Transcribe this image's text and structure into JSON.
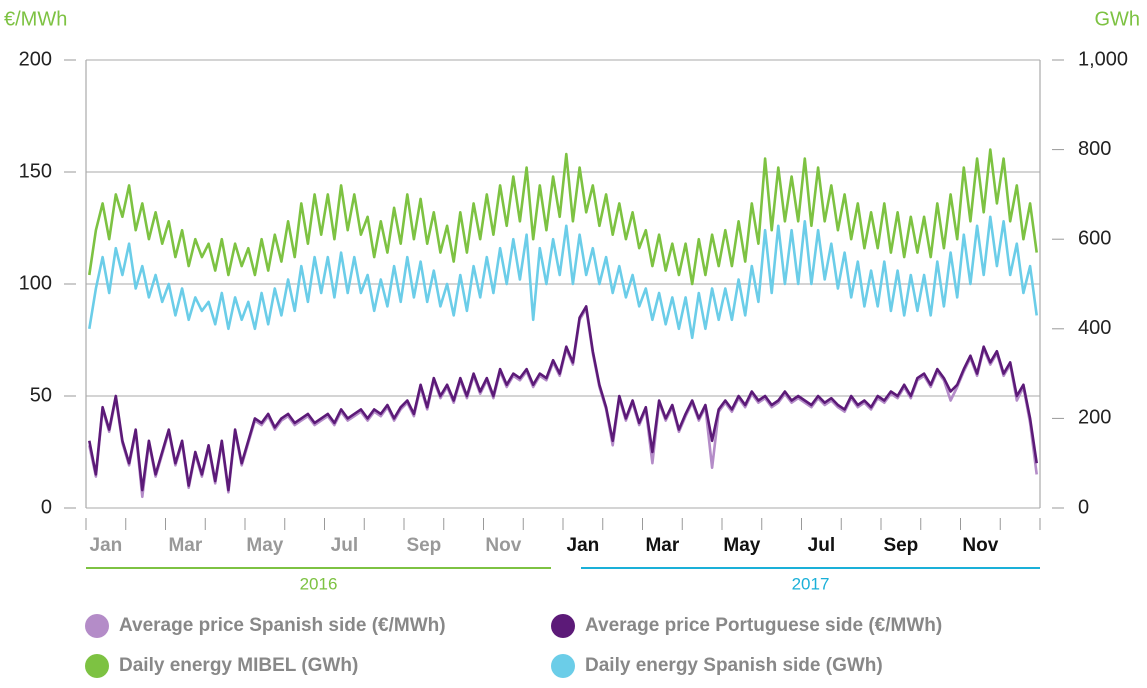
{
  "chart_data": {
    "type": "line",
    "y_label": "€/MWh",
    "y2_label": "GWh",
    "axis_label_color": "#7dc242",
    "ylim": [
      0,
      200
    ],
    "yticks": [
      0,
      50,
      100,
      150,
      200
    ],
    "y2lim": [
      0,
      1000
    ],
    "y2ticks": [
      0,
      200,
      400,
      600,
      800,
      {
        "value": 1000,
        "label": "1,000"
      }
    ],
    "grid": true,
    "legend": "bottom",
    "x_groups": [
      {
        "label": "2016",
        "color": "#7dc242"
      },
      {
        "label": "2017",
        "color": "#1ab0d8"
      }
    ],
    "categories": [
      "Jan",
      null,
      null,
      null,
      null,
      null,
      null,
      null,
      null,
      null,
      null,
      null,
      "Mar",
      null,
      null,
      null,
      null,
      null,
      null,
      null,
      null,
      null,
      null,
      null,
      "May",
      null,
      null,
      null,
      null,
      null,
      null,
      null,
      null,
      null,
      null,
      null,
      "Jul",
      null,
      null,
      null,
      null,
      null,
      null,
      null,
      null,
      null,
      null,
      null,
      "Sep",
      null,
      null,
      null,
      null,
      null,
      null,
      null,
      null,
      null,
      null,
      null,
      "Nov",
      null,
      null,
      null,
      null,
      null,
      null,
      null,
      null,
      null,
      null,
      null,
      "Jan",
      null,
      null,
      null,
      null,
      null,
      null,
      null,
      null,
      null,
      null,
      null,
      "Mar",
      null,
      null,
      null,
      null,
      null,
      null,
      null,
      null,
      null,
      null,
      null,
      "May",
      null,
      null,
      null,
      null,
      null,
      null,
      null,
      null,
      null,
      null,
      null,
      "Jul",
      null,
      null,
      null,
      null,
      null,
      null,
      null,
      null,
      null,
      null,
      null,
      "Sep",
      null,
      null,
      null,
      null,
      null,
      null,
      null,
      null,
      null,
      null,
      null,
      "Nov",
      null,
      null,
      null,
      null,
      null,
      null,
      null,
      null,
      null,
      null,
      null
    ],
    "series": [
      {
        "name": "Daily energy MIBEL (GWh)",
        "color": "#7dc242",
        "axis": "y2",
        "values": [
          520,
          620,
          680,
          600,
          700,
          650,
          720,
          620,
          680,
          600,
          660,
          590,
          640,
          560,
          620,
          540,
          600,
          560,
          590,
          530,
          600,
          520,
          590,
          540,
          580,
          520,
          600,
          530,
          610,
          550,
          640,
          560,
          680,
          590,
          700,
          610,
          700,
          600,
          720,
          620,
          700,
          610,
          650,
          560,
          640,
          570,
          670,
          590,
          700,
          600,
          690,
          590,
          660,
          570,
          630,
          550,
          660,
          570,
          680,
          600,
          700,
          610,
          720,
          630,
          740,
          640,
          760,
          600,
          720,
          620,
          740,
          650,
          790,
          640,
          760,
          660,
          720,
          630,
          700,
          610,
          680,
          600,
          660,
          580,
          620,
          540,
          610,
          530,
          590,
          520,
          590,
          500,
          600,
          520,
          610,
          540,
          620,
          540,
          640,
          550,
          680,
          590,
          780,
          620,
          760,
          640,
          740,
          640,
          780,
          630,
          760,
          640,
          720,
          620,
          700,
          600,
          680,
          580,
          660,
          580,
          680,
          570,
          660,
          560,
          650,
          570,
          650,
          560,
          680,
          580,
          700,
          600,
          760,
          640,
          780,
          660,
          800,
          680,
          780,
          640,
          720,
          600,
          680,
          570
        ]
      },
      {
        "name": "Daily energy Spanish side (GWh)",
        "color": "#6bcde8",
        "axis": "y2",
        "values": [
          400,
          490,
          560,
          480,
          580,
          520,
          590,
          490,
          540,
          470,
          520,
          460,
          500,
          430,
          490,
          420,
          470,
          440,
          460,
          410,
          480,
          400,
          470,
          420,
          460,
          400,
          480,
          410,
          490,
          430,
          510,
          440,
          540,
          460,
          560,
          480,
          560,
          470,
          570,
          480,
          560,
          480,
          520,
          440,
          510,
          450,
          540,
          460,
          560,
          470,
          550,
          460,
          530,
          450,
          500,
          430,
          520,
          440,
          540,
          470,
          560,
          480,
          580,
          500,
          600,
          510,
          610,
          420,
          580,
          500,
          600,
          520,
          630,
          500,
          610,
          520,
          580,
          500,
          560,
          480,
          540,
          470,
          520,
          450,
          490,
          420,
          480,
          410,
          470,
          400,
          470,
          380,
          480,
          400,
          490,
          420,
          490,
          420,
          510,
          430,
          540,
          460,
          620,
          480,
          630,
          500,
          620,
          500,
          640,
          500,
          620,
          510,
          590,
          490,
          570,
          470,
          550,
          450,
          530,
          450,
          550,
          440,
          530,
          430,
          520,
          440,
          520,
          430,
          550,
          450,
          570,
          470,
          610,
          500,
          630,
          520,
          650,
          540,
          640,
          520,
          590,
          480,
          540,
          430
        ]
      },
      {
        "name": "Average price Spanish side (€/MWh)",
        "color": "#b48cc8",
        "values": [
          28,
          14,
          44,
          34,
          49,
          29,
          19,
          34,
          5,
          29,
          14,
          24,
          34,
          19,
          29,
          9,
          24,
          14,
          27,
          11,
          29,
          7,
          34,
          19,
          29,
          39,
          37,
          41,
          35,
          39,
          41,
          37,
          39,
          41,
          37,
          39,
          41,
          37,
          43,
          39,
          41,
          43,
          39,
          43,
          41,
          45,
          39,
          44,
          47,
          41,
          54,
          44,
          57,
          49,
          54,
          47,
          57,
          49,
          59,
          51,
          57,
          49,
          61,
          54,
          59,
          57,
          61,
          54,
          59,
          57,
          65,
          59,
          71,
          64,
          84,
          89,
          69,
          54,
          44,
          28,
          49,
          39,
          47,
          37,
          44,
          20,
          47,
          39,
          45,
          34,
          41,
          47,
          39,
          45,
          18,
          43,
          47,
          43,
          49,
          45,
          51,
          47,
          49,
          45,
          47,
          51,
          47,
          49,
          47,
          45,
          49,
          46,
          48,
          45,
          43,
          49,
          45,
          47,
          44,
          49,
          47,
          51,
          49,
          54,
          49,
          57,
          59,
          54,
          61,
          57,
          48,
          54,
          61,
          67,
          59,
          71,
          64,
          69,
          59,
          64,
          48,
          54,
          38,
          15
        ]
      },
      {
        "name": "Average price Portuguese side (€/MWh)",
        "color": "#5c1a78",
        "values": [
          30,
          15,
          45,
          35,
          50,
          30,
          20,
          35,
          8,
          30,
          15,
          25,
          35,
          20,
          30,
          10,
          25,
          15,
          28,
          12,
          30,
          8,
          35,
          20,
          30,
          40,
          38,
          42,
          36,
          40,
          42,
          38,
          40,
          42,
          38,
          40,
          42,
          38,
          44,
          40,
          42,
          44,
          40,
          44,
          42,
          46,
          40,
          45,
          48,
          42,
          55,
          45,
          58,
          50,
          55,
          48,
          58,
          50,
          60,
          52,
          58,
          50,
          62,
          55,
          60,
          58,
          62,
          55,
          60,
          58,
          66,
          60,
          72,
          65,
          85,
          90,
          70,
          55,
          45,
          30,
          50,
          40,
          48,
          38,
          45,
          25,
          48,
          40,
          46,
          35,
          42,
          48,
          40,
          46,
          30,
          44,
          48,
          44,
          50,
          46,
          52,
          48,
          50,
          46,
          48,
          52,
          48,
          50,
          48,
          46,
          50,
          47,
          49,
          46,
          44,
          50,
          46,
          48,
          45,
          50,
          48,
          52,
          50,
          55,
          50,
          58,
          60,
          55,
          62,
          58,
          52,
          55,
          62,
          68,
          60,
          72,
          65,
          70,
          60,
          65,
          50,
          55,
          40,
          20
        ]
      }
    ]
  }
}
